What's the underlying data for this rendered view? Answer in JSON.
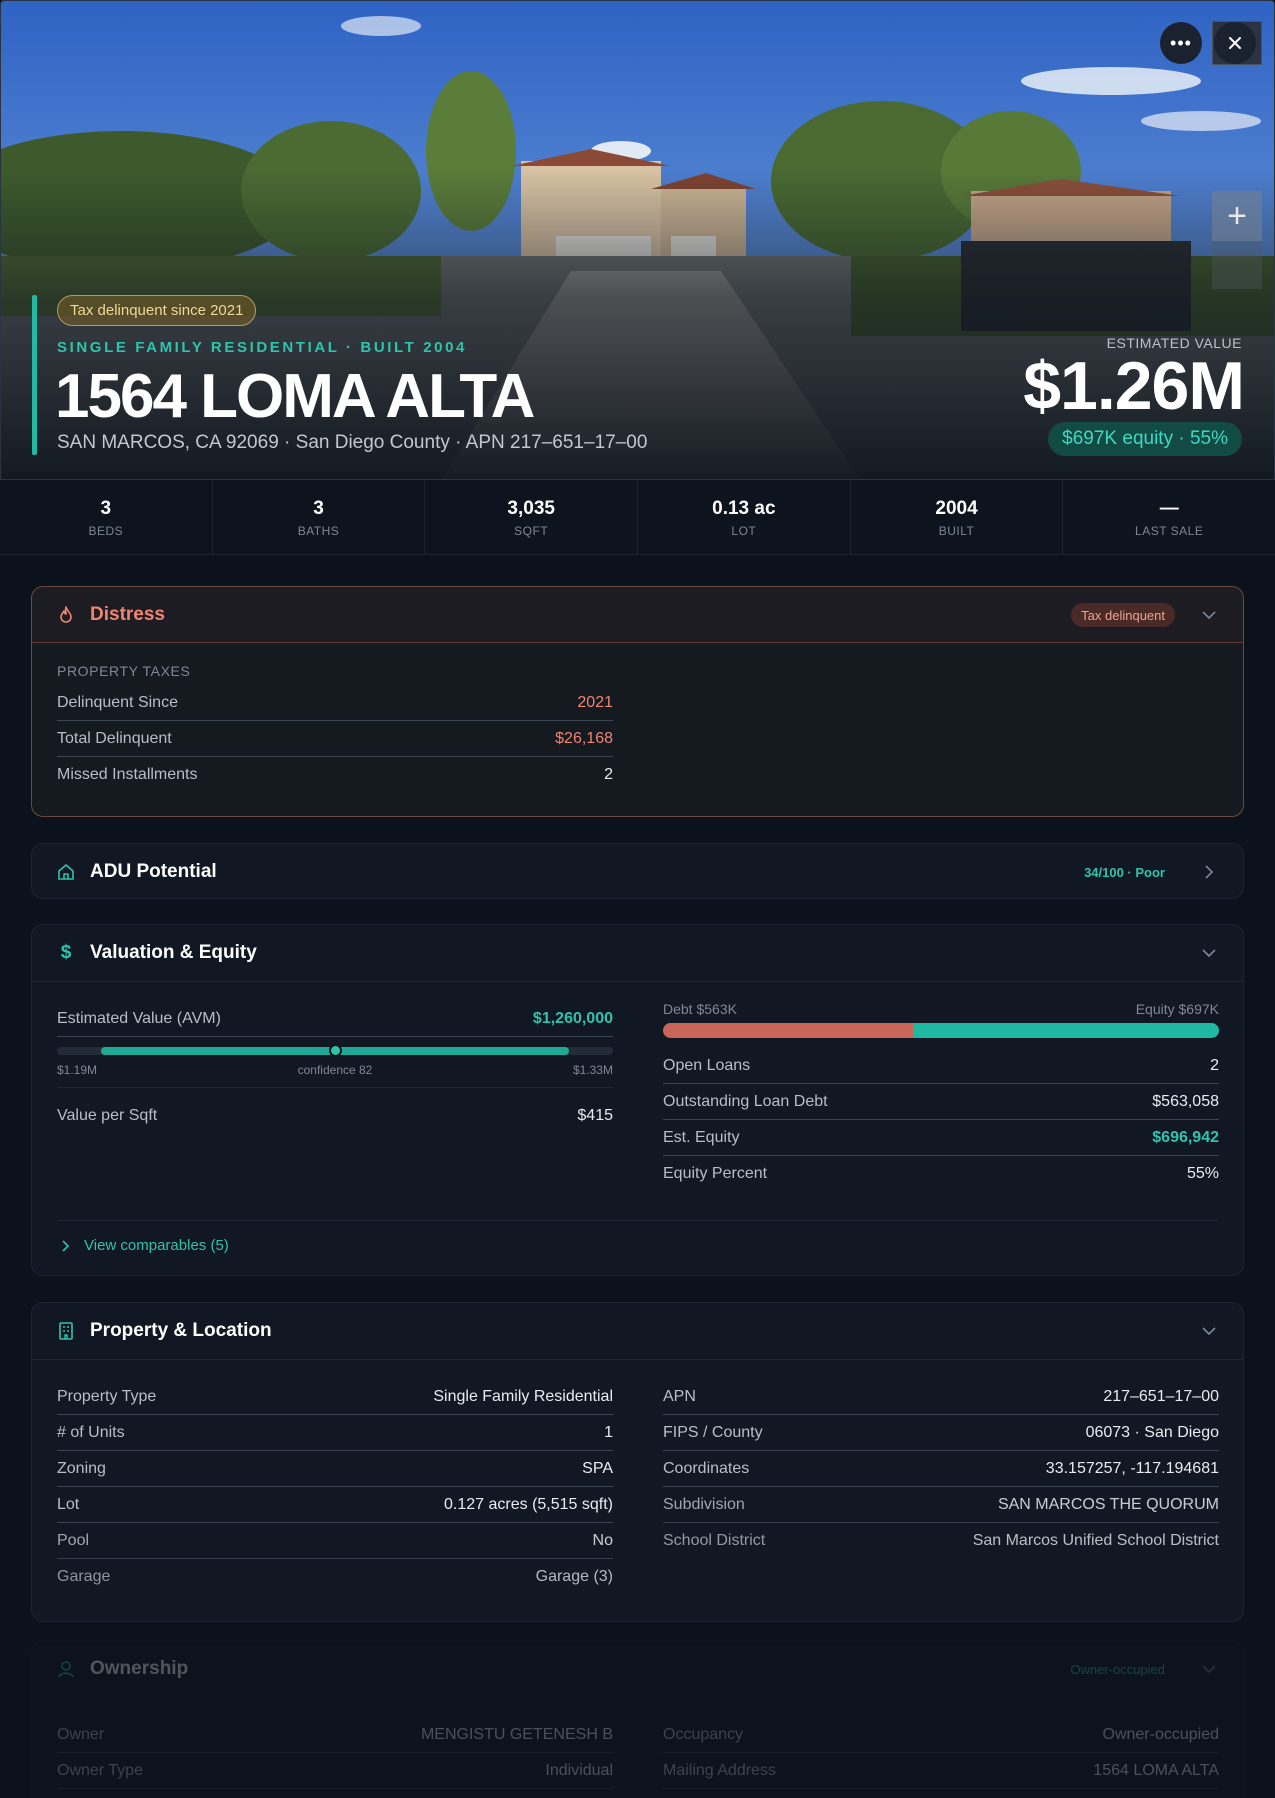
{
  "hero": {
    "tax_pill": "Tax delinquent since 2021",
    "subtitle": "SINGLE FAMILY RESIDENTIAL · BUILT 2004",
    "address": "1564 LOMA ALTA",
    "location": "SAN MARCOS, CA 92069 · San Diego County · APN 217–651–17–00",
    "estimated_label": "ESTIMATED VALUE",
    "estimated_value": "$1.26M",
    "equity_pill": "$697K equity · 55%",
    "more_icon": "more-horizontal-icon",
    "close_icon": "close-icon",
    "plus_icon": "plus-icon"
  },
  "stats": [
    {
      "value": "3",
      "label": "BEDS"
    },
    {
      "value": "3",
      "label": "BATHS"
    },
    {
      "value": "3,035",
      "label": "SQFT"
    },
    {
      "value": "0.13 ac",
      "label": "LOT"
    },
    {
      "value": "2004",
      "label": "BUILT"
    },
    {
      "value": "—",
      "label": "LAST SALE"
    }
  ],
  "distress": {
    "title": "Distress",
    "badge": "Tax delinquent",
    "section_label": "PROPERTY TAXES",
    "rows": [
      {
        "k": "Delinquent Since",
        "v": "2021"
      },
      {
        "k": "Total Delinquent",
        "v": "$26,168"
      },
      {
        "k": "Missed Installments",
        "v": "2"
      }
    ]
  },
  "adu": {
    "title": "ADU Potential",
    "badge": "34/100 · Poor"
  },
  "valuation": {
    "title": "Valuation & Equity",
    "avm_label": "Estimated Value (AVM)",
    "avm_value": "$1,260,000",
    "range_low": "$1.19M",
    "confidence": "confidence 82",
    "range_high": "$1.33M",
    "avm_position": 0.5,
    "sqft_label": "Value per Sqft",
    "sqft_value": "$415",
    "debt_label": "Debt $563K",
    "equity_label": "Equity $697K",
    "debt_fraction": 0.45,
    "rows": [
      {
        "k": "Open Loans",
        "v": "2"
      },
      {
        "k": "Outstanding Loan Debt",
        "v": "$563,058"
      },
      {
        "k": "Est. Equity",
        "v": "$696,942"
      },
      {
        "k": "Equity Percent",
        "v": "55%"
      }
    ],
    "comparables_link": "View comparables (5)"
  },
  "property": {
    "title": "Property & Location",
    "left": [
      {
        "k": "Property Type",
        "v": "Single Family Residential"
      },
      {
        "k": "# of Units",
        "v": "1"
      },
      {
        "k": "Zoning",
        "v": "SPA"
      },
      {
        "k": "Lot",
        "v": "0.127 acres (5,515 sqft)"
      },
      {
        "k": "Pool",
        "v": "No"
      },
      {
        "k": "Garage",
        "v": "Garage (3)"
      }
    ],
    "right": [
      {
        "k": "APN",
        "v": "217–651–17–00"
      },
      {
        "k": "FIPS / County",
        "v": "06073 · San Diego"
      },
      {
        "k": "Coordinates",
        "v": "33.157257, -117.194681"
      },
      {
        "k": "Subdivision",
        "v": "SAN MARCOS THE QUORUM"
      },
      {
        "k": "School District",
        "v": "San Marcos Unified School District"
      }
    ]
  },
  "ownership": {
    "title": "Ownership",
    "badge": "Owner-occupied",
    "left": [
      {
        "k": "Owner",
        "v": "MENGISTU GETENESH B"
      },
      {
        "k": "Owner Type",
        "v": "Individual"
      }
    ],
    "right": [
      {
        "k": "Occupancy",
        "v": "Owner-occupied"
      },
      {
        "k": "Mailing Address",
        "v": "1564 LOMA ALTA"
      }
    ]
  },
  "colors": {
    "accent": "#23b8a3",
    "distress": "#ef8472",
    "debt": "#c9665a",
    "equity": "#1fb8a3"
  }
}
